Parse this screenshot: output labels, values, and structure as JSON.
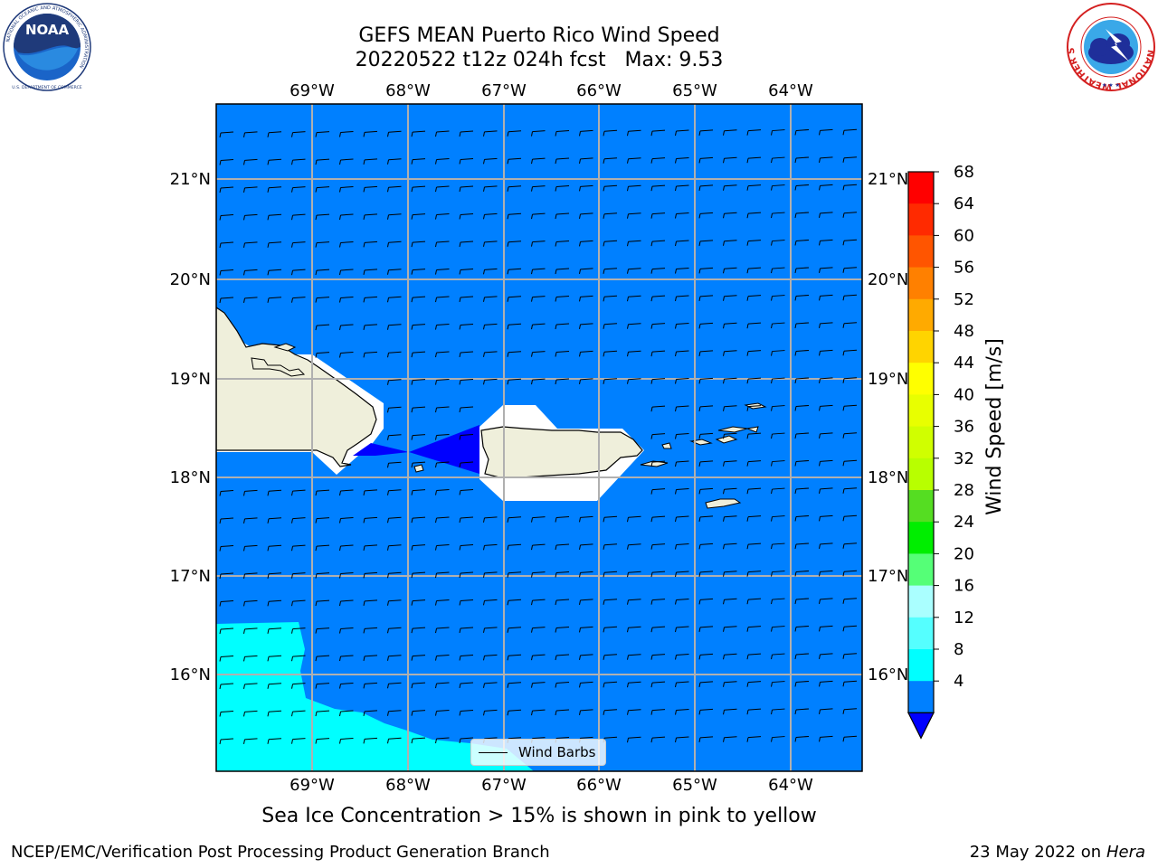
{
  "header": {
    "title_line1": "GEFS MEAN Puerto Rico Wind Speed",
    "title_line2": "20220522 t12z 024h fcst   Max: 9.53"
  },
  "logos": {
    "noaa_text": "NOAA",
    "noaa_ring_text": "NATIONAL OCEANIC AND ATMOSPHERIC ADMINISTRATION",
    "noaa_bottom_text": "U.S. DEPARTMENT OF COMMERCE",
    "nws_ring_text": "NATIONAL WEATHER SERVICE"
  },
  "map": {
    "lon_labels": [
      "69°W",
      "68°W",
      "67°W",
      "66°W",
      "65°W",
      "64°W"
    ],
    "lat_labels": [
      "21°N",
      "20°N",
      "19°N",
      "18°N",
      "17°N",
      "16°N"
    ],
    "ocean_color": "#0080ff",
    "land_color": "#efefdb",
    "low_wind_color": "#0000ff",
    "high_wind_color": "#00ffff"
  },
  "legend": {
    "label": "Wind Barbs"
  },
  "colorbar": {
    "title": "Wind Speed [m/s]",
    "levels": [
      "68",
      "64",
      "60",
      "56",
      "52",
      "48",
      "44",
      "40",
      "36",
      "32",
      "28",
      "24",
      "20",
      "16",
      "12",
      "8",
      "4"
    ],
    "colors": [
      "#ff0000",
      "#ff2a00",
      "#ff5500",
      "#ff8000",
      "#ffaa00",
      "#ffd400",
      "#ffff00",
      "#e8ff00",
      "#d0ff00",
      "#b8ff00",
      "#55dd22",
      "#00ee00",
      "#55ff77",
      "#aaffff",
      "#55ffff",
      "#00ffff",
      "#0080ff"
    ],
    "under_color": "#0000ff"
  },
  "caption": "Sea Ice Concentration > 15% is shown in pink to yellow",
  "footer": {
    "left": "NCEP/EMC/Verification Post Processing Product Generation Branch",
    "right_date": "23 May 2022 on",
    "right_host": "Hera"
  }
}
